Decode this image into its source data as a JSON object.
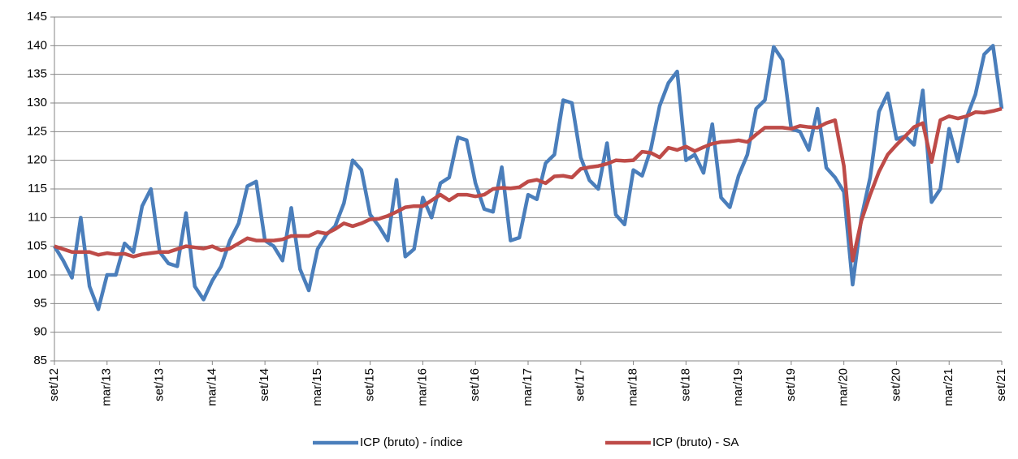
{
  "chart_data": {
    "type": "line",
    "categories": [
      "set/12",
      null,
      null,
      null,
      null,
      null,
      "mar/13",
      null,
      null,
      null,
      null,
      null,
      "set/13",
      null,
      null,
      null,
      null,
      null,
      "mar/14",
      null,
      null,
      null,
      null,
      null,
      "set/14",
      null,
      null,
      null,
      null,
      null,
      "mar/15",
      null,
      null,
      null,
      null,
      null,
      "set/15",
      null,
      null,
      null,
      null,
      null,
      "mar/16",
      null,
      null,
      null,
      null,
      null,
      "set/16",
      null,
      null,
      null,
      null,
      null,
      "mar/17",
      null,
      null,
      null,
      null,
      null,
      "set/17",
      null,
      null,
      null,
      null,
      null,
      "mar/18",
      null,
      null,
      null,
      null,
      null,
      "set/18",
      null,
      null,
      null,
      null,
      null,
      "mar/19",
      null,
      null,
      null,
      null,
      null,
      "set/19",
      null,
      null,
      null,
      null,
      null,
      "mar/20",
      null,
      null,
      null,
      null,
      null,
      "set/20",
      null,
      null,
      null,
      null,
      null,
      "mar/21",
      null,
      null,
      null,
      null,
      null,
      "set/21"
    ],
    "series": [
      {
        "name": "ICP (bruto) - índice",
        "color": "#4a7ebb",
        "values": [
          105,
          102.5,
          99.5,
          110,
          98,
          94,
          100,
          100,
          105.5,
          104,
          112,
          115,
          104,
          102,
          101.5,
          110.8,
          98,
          95.7,
          99,
          101.5,
          106,
          109,
          115.5,
          116.3,
          106,
          105,
          102.5,
          111.7,
          101,
          97.3,
          104.5,
          107,
          108.5,
          112.5,
          120,
          118.3,
          110.5,
          108.5,
          106,
          116.6,
          103.2,
          104.5,
          113.5,
          110,
          116,
          117,
          124,
          123.5,
          116,
          111.5,
          111,
          118.8,
          106,
          106.5,
          114,
          113.2,
          119.5,
          121,
          130.5,
          130,
          120.5,
          116.5,
          115,
          123,
          110.5,
          108.8,
          118.3,
          117.3,
          122,
          129.5,
          133.5,
          135.5,
          120,
          121,
          117.8,
          126.3,
          113.5,
          111.8,
          117.3,
          121,
          129,
          130.5,
          139.8,
          137.5,
          125.5,
          125,
          121.8,
          129,
          118.7,
          117,
          114.5,
          98.3,
          110,
          117,
          128.5,
          131.7,
          123.7,
          124.2,
          122.7,
          132.2,
          112.7,
          115,
          125.5,
          119.8,
          127.5,
          131.5,
          138.5,
          140,
          129
        ]
      },
      {
        "name": "ICP (bruto) - SA",
        "color": "#be4b48",
        "values": [
          105,
          104.5,
          104,
          104,
          104,
          103.5,
          103.8,
          103.6,
          103.7,
          103.2,
          103.6,
          103.8,
          104,
          104,
          104.5,
          105,
          104.8,
          104.6,
          105,
          104.3,
          104.6,
          105.5,
          106.4,
          106,
          106,
          106,
          106.2,
          106.8,
          106.8,
          106.8,
          107.5,
          107.2,
          108,
          109,
          108.5,
          109,
          109.7,
          109.8,
          110.3,
          111,
          111.8,
          112,
          112,
          113,
          114,
          113,
          114,
          114,
          113.7,
          114,
          115,
          115.2,
          115.1,
          115.3,
          116.3,
          116.6,
          116,
          117.2,
          117.3,
          117,
          118.5,
          118.8,
          119,
          119.4,
          120,
          119.9,
          120,
          121.5,
          121.3,
          120.5,
          122.2,
          121.8,
          122.4,
          121.6,
          122.3,
          122.9,
          123.2,
          123.3,
          123.5,
          123.2,
          124.5,
          125.7,
          125.7,
          125.7,
          125.5,
          126,
          125.8,
          125.7,
          126.5,
          127,
          119,
          102.5,
          109.5,
          114,
          118,
          121,
          122.7,
          124.2,
          125.8,
          126.5,
          119.7,
          127,
          127.7,
          127.3,
          127.7,
          128.4,
          128.3,
          128.6,
          129
        ]
      }
    ],
    "ylim": [
      85,
      145
    ],
    "yticks": [
      85,
      90,
      95,
      100,
      105,
      110,
      115,
      120,
      125,
      130,
      135,
      140,
      145
    ],
    "grid": true,
    "legend": "bottom"
  }
}
